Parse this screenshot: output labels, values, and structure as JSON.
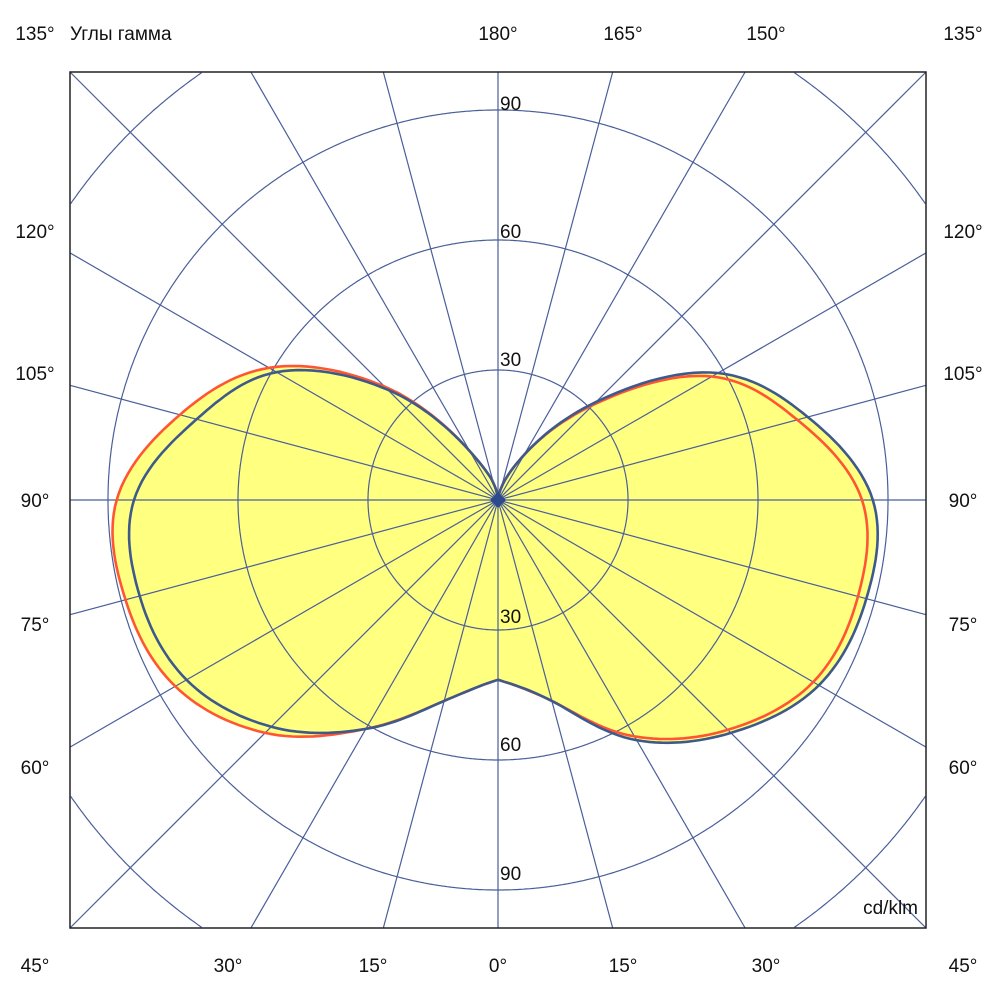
{
  "chart_data": {
    "type": "polar",
    "title": "Углы гамма",
    "unit_label": "cd/klm",
    "radial_ticks": [
      30,
      60,
      90
    ],
    "radial_grid": [
      30,
      60,
      90,
      120
    ],
    "angle_step_deg": 15,
    "angle_labels": {
      "top": [
        "135°",
        "180°",
        "165°",
        "150°",
        "135°"
      ],
      "left": [
        "120°",
        "105°",
        "90°",
        "75°",
        "60°"
      ],
      "right": [
        "120°",
        "105°",
        "90°",
        "75°",
        "60°"
      ],
      "bottom": [
        "45°",
        "30°",
        "15°",
        "0°",
        "15°",
        "30°",
        "45°"
      ]
    },
    "gamma": [
      0,
      15,
      30,
      45,
      60,
      75,
      90,
      105,
      120,
      135,
      150,
      165,
      180
    ],
    "series": [
      {
        "color": "#ff5533",
        "left": [
          41.5,
          48,
          61,
          76,
          86,
          89,
          88,
          76,
          61,
          37,
          13,
          4,
          0
        ],
        "right": [
          41.5,
          48,
          63,
          75,
          84,
          86,
          84,
          71.5,
          57,
          31,
          12,
          3,
          0
        ]
      },
      {
        "color": "#3d5a8a",
        "left": [
          41.5,
          48,
          61,
          74,
          83,
          85.6,
          84,
          72,
          59,
          36,
          13,
          4,
          0
        ],
        "right": [
          41.5,
          48,
          64,
          76,
          85.5,
          88,
          86.5,
          74,
          58.6,
          32,
          12,
          3,
          0
        ]
      }
    ],
    "fill_color": "#ffff80",
    "grid_color": "#4a5f9a"
  }
}
